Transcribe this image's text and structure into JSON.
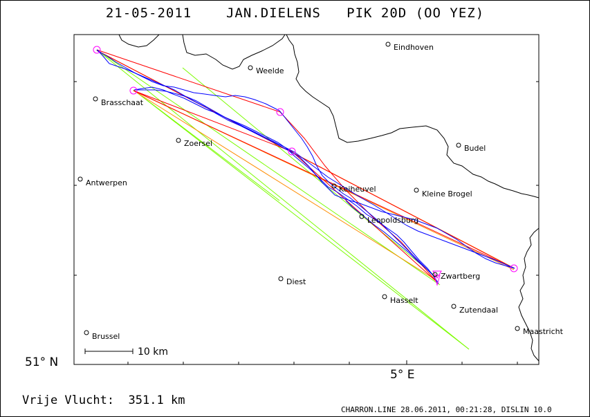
{
  "header": {
    "date": "21-05-2011",
    "pilot": "JAN.DIELENS",
    "glider": "PIK 20D (OO YEZ)"
  },
  "axes": {
    "latitude_label": "51° N",
    "longitude_label": "5° E"
  },
  "scale": {
    "label": "10 km"
  },
  "distance": {
    "label": "Vrije Vlucht:",
    "value": "351.1 km"
  },
  "footer": {
    "text": "CHARRON.LINE 28.06.2011, 00:21:28, DISLIN 10.0"
  },
  "cities": [
    {
      "name": "Eindhoven"
    },
    {
      "name": "Weelde"
    },
    {
      "name": "Brasschaat"
    },
    {
      "name": "Zoersel"
    },
    {
      "name": "Budel"
    },
    {
      "name": "Antwerpen"
    },
    {
      "name": "Keiheuvel"
    },
    {
      "name": "Kleine Brogel"
    },
    {
      "name": "Leopoldsburg"
    },
    {
      "name": "Zwartberg"
    },
    {
      "name": "Diest"
    },
    {
      "name": "Hasselt"
    },
    {
      "name": "Zutendaal"
    },
    {
      "name": "Brussel"
    },
    {
      "name": "Maastricht"
    }
  ],
  "colors": {
    "track": "#0000ff",
    "turnpoint_legs": "#ff0000",
    "declared_legs": "#ff8c00",
    "sector_lines": "#7cfc00",
    "turnpoint_markers": "#ff00ff",
    "border": "#000000"
  }
}
